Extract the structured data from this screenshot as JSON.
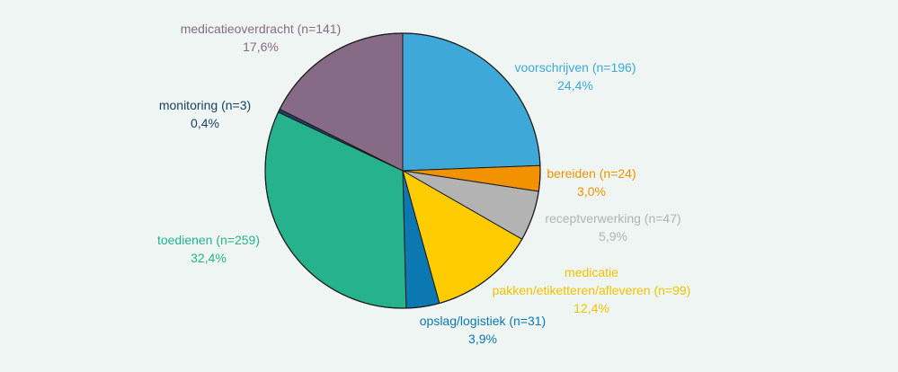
{
  "chart_data": {
    "type": "pie",
    "title": "",
    "slices": [
      {
        "label": "voorschrijven (n=196)",
        "percent_label": "24,4%",
        "n": 196,
        "value": 24.4,
        "color": "#3ea9d9",
        "label_color": "#3ea9d9"
      },
      {
        "label": "bereiden (n=24)",
        "percent_label": "3,0%",
        "n": 24,
        "value": 3.0,
        "color": "#f39200",
        "label_color": "#f39200"
      },
      {
        "label": "receptverwerking (n=47)",
        "percent_label": "5,9%",
        "n": 47,
        "value": 5.9,
        "color": "#b3b3b3",
        "label_color": "#b3b3b3"
      },
      {
        "label": "medicatie",
        "label2": "pakken/etiketteren/afleveren (n=99)",
        "percent_label": "12,4%",
        "n": 99,
        "value": 12.4,
        "color": "#fecc00",
        "label_color": "#f2c200"
      },
      {
        "label": "opslag/logistiek (n=31)",
        "percent_label": "3,9%",
        "n": 31,
        "value": 3.9,
        "color": "#0b78b2",
        "label_color": "#0b78b2"
      },
      {
        "label": "toedienen (n=259)",
        "percent_label": "32,4%",
        "n": 259,
        "value": 32.4,
        "color": "#27b28e",
        "label_color": "#27b28e"
      },
      {
        "label": "monitoring (n=3)",
        "percent_label": "0,4%",
        "n": 3,
        "value": 0.4,
        "color": "#1c3f66",
        "label_color": "#1c3f66"
      },
      {
        "label": "medicatieoverdracht (n=141)",
        "percent_label": "17,6%",
        "n": 141,
        "value": 17.6,
        "color": "#876b86",
        "label_color": "#876b86"
      }
    ],
    "start": "12 o'clock, clockwise",
    "legend": "none (direct labels)"
  }
}
